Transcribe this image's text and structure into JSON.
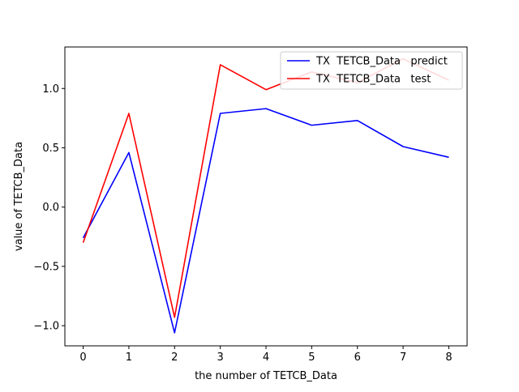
{
  "chart_data": {
    "type": "line",
    "title": "",
    "xlabel": "the number of TETCB_Data",
    "ylabel": "value of TETCB_Data",
    "x": [
      0,
      1,
      2,
      3,
      4,
      5,
      6,
      7,
      8
    ],
    "xlim": [
      -0.4,
      8.4
    ],
    "ylim": [
      -1.17,
      1.35
    ],
    "xticks": [
      0,
      1,
      2,
      3,
      4,
      5,
      6,
      7,
      8
    ],
    "yticks": [
      -1.0,
      -0.5,
      0.0,
      0.5,
      1.0
    ],
    "ytick_labels": [
      "−1.0",
      "−0.5",
      "0.0",
      "0.5",
      "1.0"
    ],
    "grid": false,
    "legend_position": "top-right",
    "series": [
      {
        "name": "TX  TETCB_Data   predict",
        "color": "#0000ff",
        "values": [
          -0.26,
          0.46,
          -1.06,
          0.79,
          0.83,
          0.69,
          0.73,
          0.51,
          0.42
        ]
      },
      {
        "name": "TX  TETCB_Data   test",
        "color": "#ff0000",
        "values": [
          -0.3,
          0.79,
          -0.93,
          1.2,
          0.99,
          1.14,
          1.05,
          1.25,
          1.07
        ]
      }
    ]
  }
}
